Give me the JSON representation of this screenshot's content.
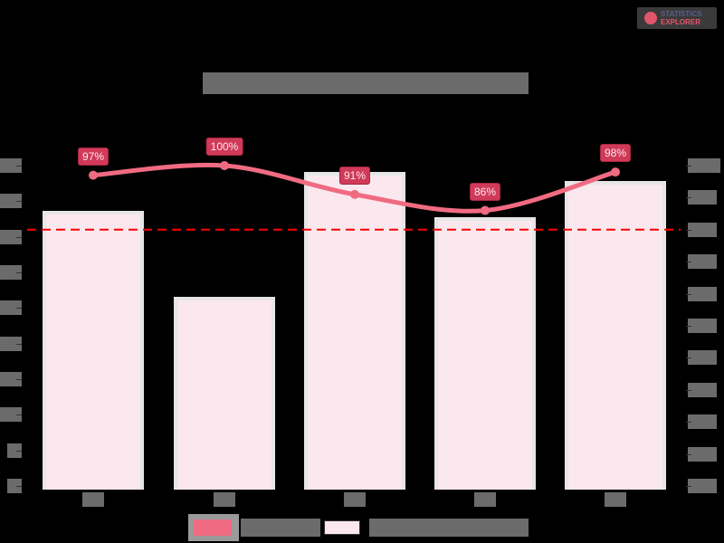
{
  "logo": {
    "line1": "STATISTICS",
    "line2": "EXPLORER"
  },
  "chart_data": {
    "type": "bar",
    "title": "",
    "categories": [
      "",
      "",
      "",
      "",
      ""
    ],
    "series": [
      {
        "name": "",
        "type": "bar",
        "axis": "left",
        "values": [
          38.6,
          26.6,
          44.1,
          37.7,
          42.8
        ]
      },
      {
        "name": "",
        "type": "line",
        "axis": "right",
        "values": [
          97,
          100,
          91,
          86,
          98
        ],
        "labels": [
          "97%",
          "100%",
          "91%",
          "86%",
          "98%"
        ]
      }
    ],
    "reference_line": {
      "axis": "right",
      "value": 80,
      "style": "dashed",
      "color": "#ff0000"
    },
    "left_axis": {
      "ylim": [
        0,
        45
      ],
      "ticks": [
        0,
        5,
        10,
        15,
        20,
        25,
        30,
        35,
        40,
        45
      ]
    },
    "right_axis": {
      "ylim": [
        0,
        100
      ],
      "ticks": [
        "0%",
        "10%",
        "20%",
        "30%",
        "40%",
        "50%",
        "60%",
        "70%",
        "80%",
        "90%",
        "100%"
      ]
    },
    "grid": false,
    "legend_position": "bottom",
    "colors": {
      "bar_fill": "#fbe8ee",
      "bar_border": "#e6e6e6",
      "line": "#f06b82",
      "label_bg": "#d03a58",
      "reference": "#ff0000"
    }
  }
}
